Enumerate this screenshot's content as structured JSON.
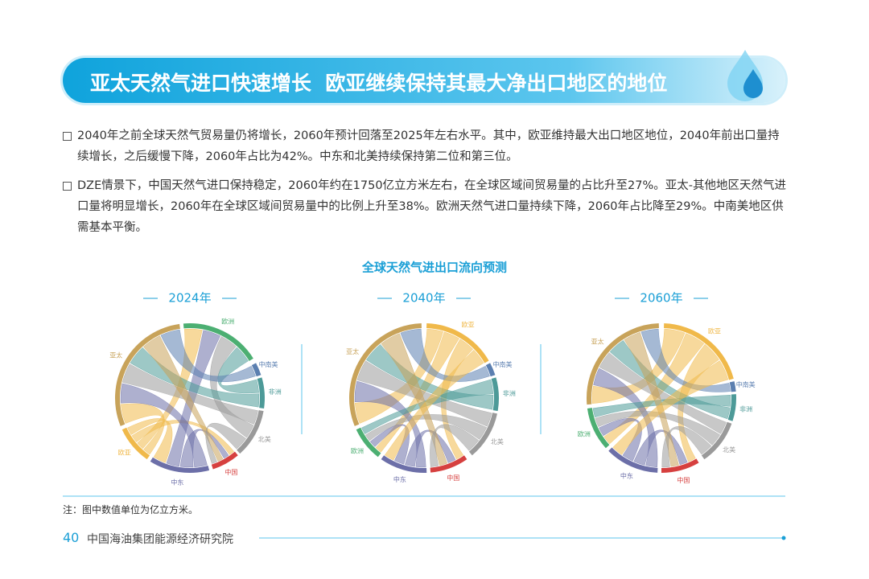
{
  "header": {
    "title": "亚太天然气进口快速增长  欧亚继续保持其最大净出口地区的地位"
  },
  "paragraphs": [
    "2040年之前全球天然气贸易量仍将增长，2060年预计回落至2025年左右水平。其中，欧亚维持最大出口地区地位，2040年前出口量持续增长，之后缓慢下降，2060年占比为42%。中东和北美持续保持第二位和第三位。",
    "DZE情景下，中国天然气进口保持稳定，2060年约在1750亿立方米左右，在全球区域间贸易量的占比升至27%。亚太-其他地区天然气进口量将明显增长，2060年在全球区域间贸易量中的比例上升至38%。欧洲天然气进口量持续下降，2060年占比降至29%。中南美地区供需基本平衡。"
  ],
  "chart": {
    "title": "全球天然气进出口流向预测",
    "panels": [
      {
        "year": "2024年",
        "regions": [
          "欧亚",
          "中南美",
          "非洲",
          "北美",
          "中国",
          "中东",
          "欧洲",
          "亚太"
        ]
      },
      {
        "year": "2040年",
        "regions": [
          "欧亚",
          "中南美",
          "非洲",
          "北美",
          "中国",
          "中东",
          "欧洲",
          "亚太"
        ]
      },
      {
        "year": "2060年",
        "regions": [
          "欧亚",
          "中南美",
          "非洲",
          "北美",
          "中国",
          "中东",
          "欧洲",
          "亚太"
        ]
      }
    ]
  },
  "note": "注：图中数值单位为亿立方米。",
  "footer": {
    "page": "40",
    "org": "中国海油集团能源经济研究院"
  }
}
